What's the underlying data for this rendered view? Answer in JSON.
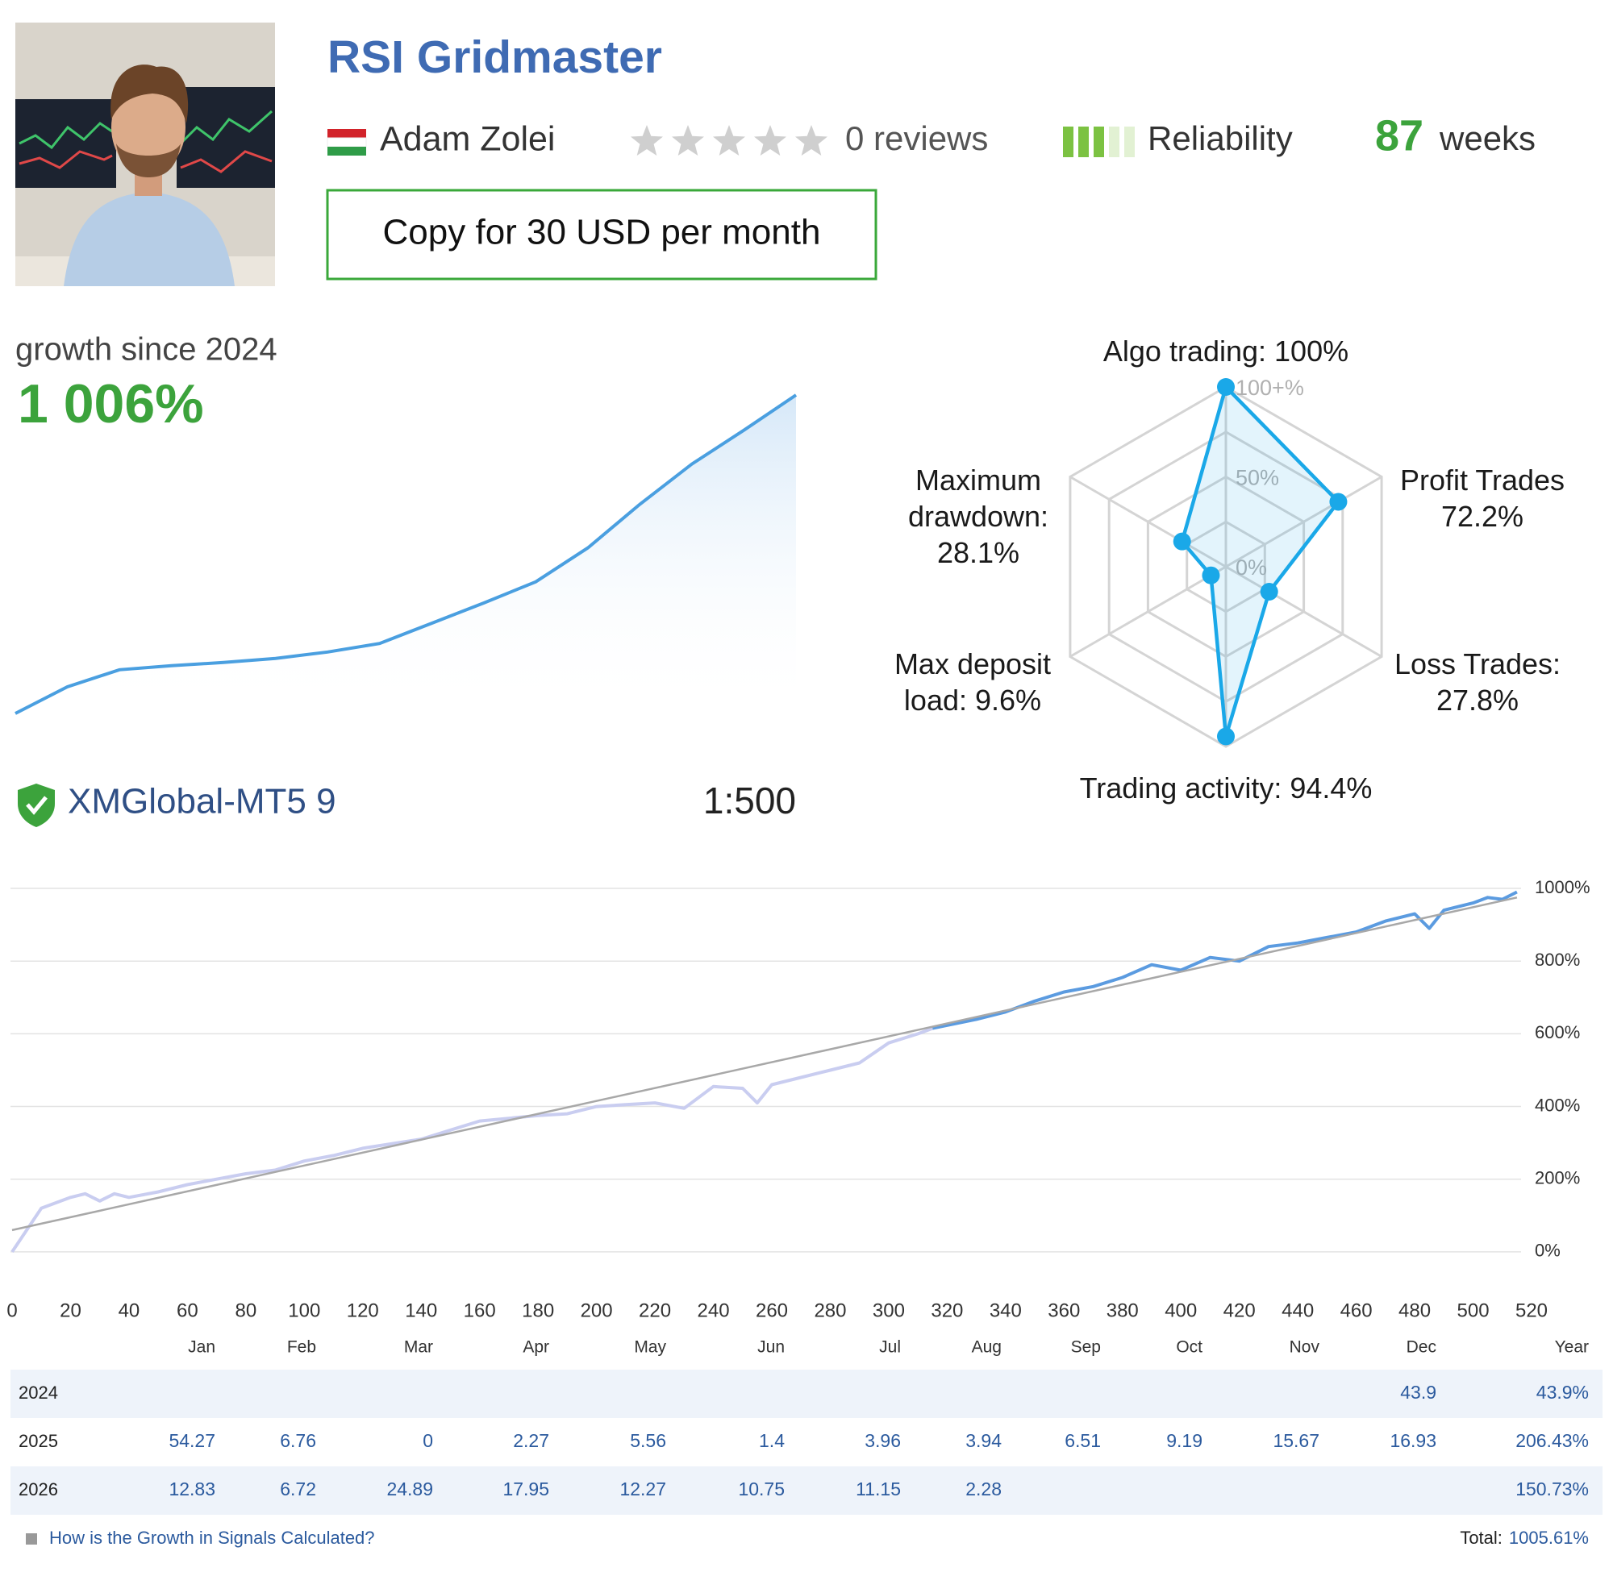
{
  "header": {
    "title": "RSI Gridmaster",
    "author": "Adam Zolei",
    "reviews": "0 reviews",
    "reliability": "Reliability",
    "weeks_value": "87",
    "weeks_unit": "weeks",
    "button": "Copy for 30 USD per month"
  },
  "broker": {
    "server": "XMGlobal-MT5 9",
    "leverage": "1:500"
  },
  "chart_data": [
    {
      "type": "area",
      "title": "growth since 2024",
      "headline": "1 006%",
      "color": "#4a9fe0",
      "values": [
        0,
        84,
        138,
        151,
        161,
        174,
        194,
        221,
        285,
        349,
        416,
        523,
        661,
        788,
        895,
        1006
      ]
    },
    {
      "type": "radar",
      "categories": [
        "Algo trading:",
        "Profit Trades",
        "Loss Trades:",
        "Trading activity:",
        "Max deposit load:",
        "Maximum drawdown:"
      ],
      "values": [
        100,
        72.2,
        27.8,
        94.4,
        9.6,
        28.1
      ],
      "value_labels": [
        "100%",
        "72.2%",
        "27.8%",
        "94.4%",
        "9.6%",
        "28.1%"
      ],
      "rlim": [
        0,
        100
      ],
      "rticks": [
        {
          "value": 0,
          "label": "0%"
        },
        {
          "value": 50,
          "label": "50%"
        },
        {
          "value": 100,
          "label": "100+%"
        }
      ],
      "color": "#1aa8e8"
    },
    {
      "type": "line",
      "xlim": [
        0,
        520
      ],
      "ylim": [
        -100,
        1040
      ],
      "grid": true,
      "xticks": [
        0,
        20,
        40,
        60,
        80,
        100,
        120,
        140,
        160,
        180,
        200,
        220,
        240,
        260,
        280,
        300,
        320,
        340,
        360,
        380,
        400,
        420,
        440,
        460,
        480,
        500,
        520
      ],
      "yticks": [
        {
          "value": 0,
          "label": "0%"
        },
        {
          "value": 200,
          "label": "200%"
        },
        {
          "value": 400,
          "label": "400%"
        },
        {
          "value": 600,
          "label": "600%"
        },
        {
          "value": 800,
          "label": "800%"
        },
        {
          "value": 1000,
          "label": "1000%"
        }
      ],
      "series": [
        {
          "color": "#c9cdf0",
          "x": [
            0,
            5,
            10,
            20,
            25,
            30,
            35,
            40,
            50,
            60,
            70,
            80,
            90,
            100,
            110,
            120,
            140,
            160,
            180,
            190,
            200,
            210,
            220,
            230,
            240,
            250,
            255,
            260,
            270,
            280,
            290,
            300,
            310,
            315
          ],
          "values": [
            0,
            60,
            120,
            150,
            160,
            140,
            160,
            150,
            165,
            185,
            200,
            215,
            225,
            250,
            265,
            285,
            310,
            360,
            375,
            380,
            400,
            405,
            410,
            395,
            455,
            450,
            410,
            460,
            480,
            500,
            520,
            575,
            600,
            615
          ]
        },
        {
          "color": "#5b9be0",
          "x": [
            315,
            330,
            340,
            350,
            360,
            370,
            380,
            390,
            400,
            410,
            420,
            430,
            440,
            450,
            460,
            470,
            480,
            485,
            490,
            500,
            505,
            510,
            515
          ],
          "values": [
            615,
            640,
            660,
            690,
            715,
            730,
            755,
            790,
            775,
            810,
            800,
            840,
            850,
            865,
            880,
            910,
            930,
            890,
            940,
            960,
            975,
            970,
            990
          ]
        },
        {
          "color": "#a8a8a8",
          "x": [
            0,
            515
          ],
          "values": [
            60,
            975
          ]
        }
      ]
    }
  ],
  "table": {
    "columns": [
      "Jan",
      "Feb",
      "Mar",
      "Apr",
      "May",
      "Jun",
      "Jul",
      "Aug",
      "Sep",
      "Oct",
      "Nov",
      "Dec",
      "Year"
    ],
    "rows": [
      {
        "label": "2024",
        "cells": [
          null,
          null,
          null,
          null,
          null,
          null,
          null,
          null,
          null,
          null,
          null,
          "43.9",
          "43.9%"
        ]
      },
      {
        "label": "2025",
        "cells": [
          "54.27",
          "6.76",
          "0",
          "2.27",
          "5.56",
          "1.4",
          "3.96",
          "3.94",
          "6.51",
          "9.19",
          "15.67",
          "16.93",
          "206.43%"
        ]
      },
      {
        "label": "2026",
        "cells": [
          "12.83",
          "6.72",
          "24.89",
          "17.95",
          "12.27",
          "10.75",
          "11.15",
          "2.28",
          null,
          null,
          null,
          null,
          "150.73%"
        ]
      }
    ]
  },
  "footer": {
    "link": "How is the Growth in Signals Calculated?",
    "total_label": "Total:",
    "total": "1005.61%"
  }
}
